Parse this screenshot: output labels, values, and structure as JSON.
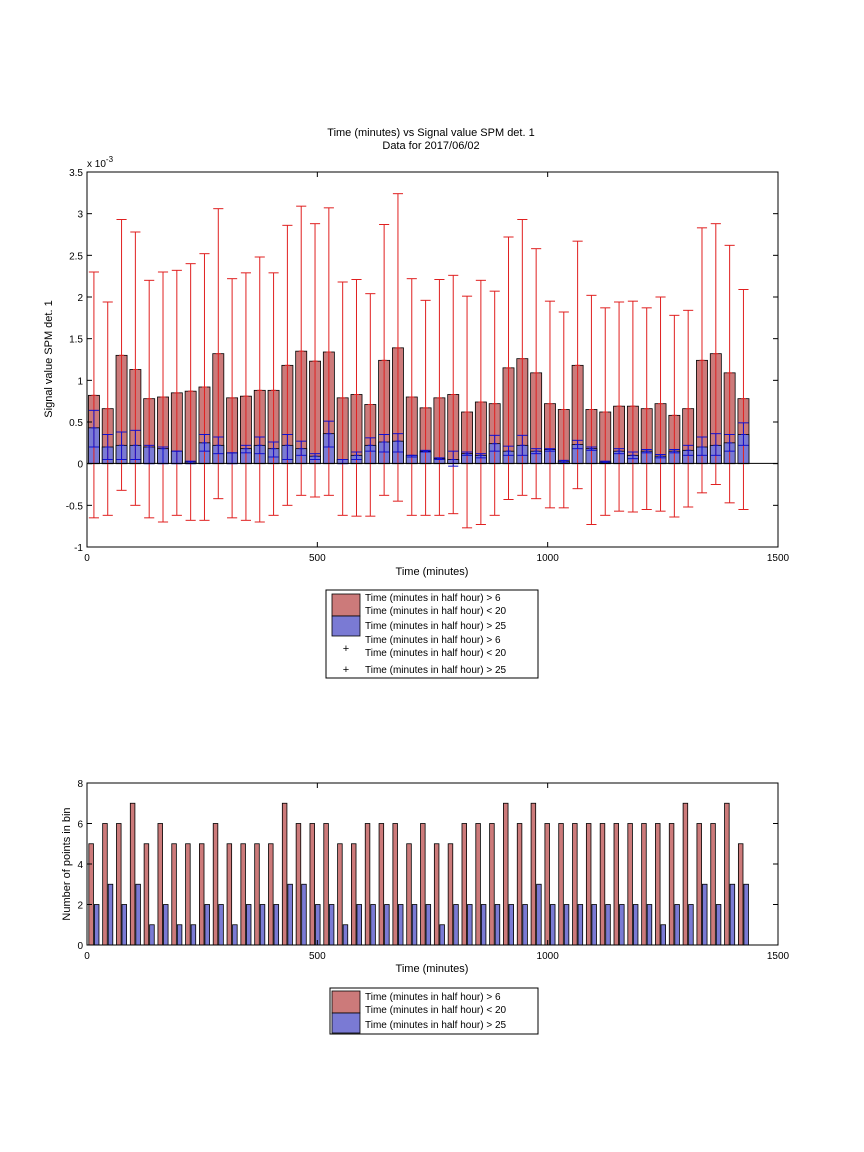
{
  "figure": {
    "title_line1": "Time (minutes) vs Signal value SPM det. 1",
    "title_line2": "Data for 2017/06/02"
  },
  "chart_data": [
    {
      "type": "bar",
      "xlabel": "Time (minutes)",
      "ylabel": "Signal value SPM det. 1",
      "y_exponent_label": "x 10",
      "y_exponent_power": "-3",
      "xlim": [
        0,
        1500
      ],
      "ylim": [
        -1,
        3.5
      ],
      "xticks": [
        0,
        500,
        1000,
        1500
      ],
      "yticks": [
        -1,
        -0.5,
        0,
        0.5,
        1,
        1.5,
        2,
        2.5,
        3,
        3.5
      ],
      "grid": false,
      "legend_position": "below",
      "x": [
        15,
        45,
        75,
        105,
        135,
        165,
        195,
        225,
        255,
        285,
        315,
        345,
        375,
        405,
        435,
        465,
        495,
        525,
        555,
        585,
        615,
        645,
        675,
        705,
        735,
        765,
        795,
        825,
        855,
        885,
        915,
        945,
        975,
        1005,
        1035,
        1065,
        1095,
        1125,
        1155,
        1185,
        1215,
        1245,
        1275,
        1305,
        1335,
        1365,
        1395,
        1425
      ],
      "series": [
        {
          "name": "Time (minutes in half hour) > 6\nTime (minutes in half hour) < 20",
          "color": "#cc7a7a",
          "values": [
            0.82,
            0.66,
            1.3,
            1.13,
            0.78,
            0.8,
            0.85,
            0.87,
            0.92,
            1.32,
            0.79,
            0.81,
            0.88,
            0.88,
            1.18,
            1.35,
            1.23,
            1.34,
            0.79,
            0.83,
            0.71,
            1.24,
            1.39,
            0.8,
            0.67,
            0.79,
            0.83,
            0.62,
            0.74,
            0.72,
            1.15,
            1.26,
            1.09,
            0.72,
            0.65,
            1.18,
            0.65,
            0.62,
            0.69,
            0.69,
            0.66,
            0.72,
            0.58,
            0.66,
            1.24,
            1.32,
            1.09,
            0.78
          ],
          "err_low": [
            -0.65,
            -0.62,
            -0.32,
            -0.5,
            -0.65,
            -0.7,
            -0.62,
            -0.68,
            -0.68,
            -0.42,
            -0.65,
            -0.68,
            -0.7,
            -0.62,
            -0.5,
            -0.38,
            -0.4,
            -0.38,
            -0.62,
            -0.63,
            -0.63,
            -0.38,
            -0.45,
            -0.62,
            -0.62,
            -0.62,
            -0.6,
            -0.77,
            -0.73,
            -0.62,
            -0.43,
            -0.38,
            -0.42,
            -0.53,
            -0.53,
            -0.3,
            -0.73,
            -0.62,
            -0.57,
            -0.58,
            -0.55,
            -0.57,
            -0.64,
            -0.52,
            -0.35,
            -0.25,
            -0.47,
            -0.55
          ],
          "err_high": [
            2.3,
            1.94,
            2.93,
            2.78,
            2.2,
            2.3,
            2.32,
            2.4,
            2.52,
            3.06,
            2.22,
            2.29,
            2.48,
            2.29,
            2.86,
            3.09,
            2.88,
            3.07,
            2.18,
            2.21,
            2.04,
            2.87,
            3.24,
            2.22,
            1.96,
            2.21,
            2.26,
            2.01,
            2.2,
            2.07,
            2.72,
            2.93,
            2.58,
            1.95,
            1.82,
            2.67,
            2.02,
            1.87,
            1.94,
            1.95,
            1.87,
            2.0,
            1.78,
            1.84,
            2.83,
            2.88,
            2.62,
            2.09
          ]
        },
        {
          "name": "Time (minutes in half hour) > 25",
          "color": "#7a7ad4",
          "values": [
            0.43,
            0.2,
            0.22,
            0.22,
            0.2,
            0.18,
            0.15,
            0.02,
            0.25,
            0.22,
            0.13,
            0.18,
            0.22,
            0.18,
            0.22,
            0.18,
            0.09,
            0.36,
            0.05,
            0.1,
            0.22,
            0.26,
            0.27,
            0.1,
            0.15,
            0.06,
            0.05,
            0.12,
            0.1,
            0.24,
            0.15,
            0.22,
            0.15,
            0.17,
            0.03,
            0.23,
            0.18,
            0.02,
            0.15,
            0.1,
            0.15,
            0.09,
            0.15,
            0.16,
            0.2,
            0.22,
            0.25,
            0.35
          ],
          "err_low": [
            0.2,
            0.05,
            0.05,
            0.05,
            0.0,
            0.0,
            0.0,
            0.0,
            0.15,
            0.12,
            0.0,
            0.13,
            0.12,
            0.08,
            0.05,
            0.1,
            0.05,
            0.2,
            0.0,
            0.05,
            0.15,
            0.14,
            0.14,
            0.08,
            0.14,
            0.05,
            -0.03,
            0.1,
            0.07,
            0.15,
            0.1,
            0.1,
            0.12,
            0.15,
            0.01,
            0.18,
            0.16,
            0.01,
            0.12,
            0.06,
            0.13,
            0.07,
            0.13,
            0.1,
            0.1,
            0.1,
            0.15,
            0.22
          ],
          "err_high": [
            0.64,
            0.35,
            0.38,
            0.4,
            0.22,
            0.2,
            0.15,
            0.03,
            0.35,
            0.32,
            0.13,
            0.22,
            0.32,
            0.26,
            0.35,
            0.27,
            0.12,
            0.51,
            0.05,
            0.14,
            0.31,
            0.35,
            0.36,
            0.1,
            0.16,
            0.07,
            0.15,
            0.14,
            0.12,
            0.34,
            0.21,
            0.34,
            0.18,
            0.18,
            0.04,
            0.28,
            0.2,
            0.03,
            0.18,
            0.14,
            0.17,
            0.11,
            0.17,
            0.22,
            0.32,
            0.36,
            0.35,
            0.49
          ]
        }
      ]
    },
    {
      "type": "bar",
      "xlabel": "Time (minutes)",
      "ylabel": "Number of points in bin",
      "xlim": [
        0,
        1500
      ],
      "ylim": [
        0,
        8
      ],
      "xticks": [
        0,
        500,
        1000,
        1500
      ],
      "yticks": [
        0,
        2,
        4,
        6,
        8
      ],
      "grid": false,
      "legend_position": "below",
      "x": [
        15,
        45,
        75,
        105,
        135,
        165,
        195,
        225,
        255,
        285,
        315,
        345,
        375,
        405,
        435,
        465,
        495,
        525,
        555,
        585,
        615,
        645,
        675,
        705,
        735,
        765,
        795,
        825,
        855,
        885,
        915,
        945,
        975,
        1005,
        1035,
        1065,
        1095,
        1125,
        1155,
        1185,
        1215,
        1245,
        1275,
        1305,
        1335,
        1365,
        1395,
        1425
      ],
      "series": [
        {
          "name": "Time (minutes in half hour) > 6\nTime (minutes in half hour) < 20",
          "color": "#cc7a7a",
          "values": [
            5,
            6,
            6,
            7,
            5,
            6,
            5,
            5,
            5,
            6,
            5,
            5,
            5,
            5,
            7,
            6,
            6,
            6,
            5,
            5,
            6,
            6,
            6,
            5,
            6,
            5,
            5,
            6,
            6,
            6,
            7,
            6,
            7,
            6,
            6,
            6,
            6,
            6,
            6,
            6,
            6,
            6,
            6,
            7,
            6,
            6,
            7,
            5
          ]
        },
        {
          "name": "Time (minutes in half hour) > 25",
          "color": "#7a7ad4",
          "values": [
            2,
            3,
            2,
            3,
            1,
            2,
            1,
            1,
            2,
            2,
            1,
            2,
            2,
            2,
            3,
            3,
            2,
            2,
            1,
            2,
            2,
            2,
            2,
            2,
            2,
            1,
            2,
            2,
            2,
            2,
            2,
            2,
            3,
            2,
            2,
            2,
            2,
            2,
            2,
            2,
            2,
            1,
            2,
            2,
            3,
            2,
            3,
            3
          ]
        }
      ]
    }
  ],
  "legend1": {
    "entry1_line1": "Time (minutes in half hour) > 6",
    "entry1_line2": "Time (minutes in half hour) < 20",
    "entry2": "Time (minutes in half hour) > 25",
    "entry3_line1": "Time (minutes in half hour) > 6",
    "entry3_line2": "Time (minutes in half hour) < 20",
    "entry4": "Time (minutes in half hour) > 25",
    "marker": "+"
  },
  "legend2": {
    "entry1_line1": "Time (minutes in half hour) > 6",
    "entry1_line2": "Time (minutes in half hour) < 20",
    "entry2": "Time (minutes in half hour) > 25"
  }
}
